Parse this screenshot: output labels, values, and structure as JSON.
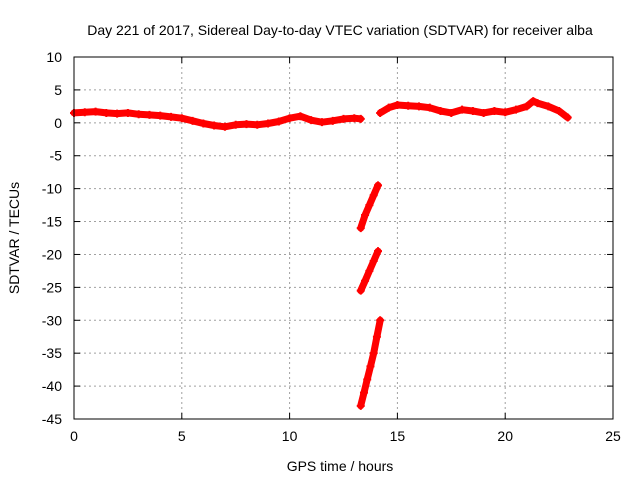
{
  "chart_data": {
    "type": "scatter",
    "title": "Day 221 of 2017, Sidereal Day-to-day VTEC variation (SDTVAR) for receiver alba",
    "xlabel": "GPS time / hours",
    "ylabel": "SDTVAR / TECUs",
    "xlim": [
      0,
      25
    ],
    "ylim": [
      -45,
      10
    ],
    "xticks": [
      0,
      5,
      10,
      15,
      20,
      25
    ],
    "yticks": [
      10,
      5,
      0,
      -5,
      -10,
      -15,
      -20,
      -25,
      -30,
      -35,
      -40,
      -45
    ],
    "grid": true,
    "legend": "none",
    "series_color": "#ff0000",
    "series": [
      {
        "name": "main-trace-1",
        "x": [
          0,
          0.5,
          1,
          1.5,
          2,
          2.5,
          3,
          3.5,
          4,
          4.5,
          5,
          5.5,
          6,
          6.5,
          7,
          7.5,
          8,
          8.5,
          9,
          9.5,
          10,
          10.5,
          11,
          11.5,
          12,
          12.5,
          13,
          13.3
        ],
        "y": [
          1.5,
          1.6,
          1.7,
          1.5,
          1.4,
          1.5,
          1.3,
          1.2,
          1.1,
          0.9,
          0.7,
          0.3,
          -0.1,
          -0.4,
          -0.6,
          -0.3,
          -0.2,
          -0.3,
          -0.1,
          0.2,
          0.7,
          1.0,
          0.4,
          0.1,
          0.3,
          0.6,
          0.7,
          0.6
        ]
      },
      {
        "name": "main-trace-2",
        "x": [
          14.2,
          14.6,
          15,
          15.5,
          16,
          16.5,
          17,
          17.5,
          18,
          18.5,
          19,
          19.5,
          20,
          20.5,
          21,
          21.3,
          21.5,
          22,
          22.5,
          22.9
        ],
        "y": [
          1.5,
          2.3,
          2.7,
          2.6,
          2.5,
          2.3,
          1.8,
          1.5,
          2.0,
          1.8,
          1.5,
          1.8,
          1.6,
          2.0,
          2.5,
          3.3,
          3.0,
          2.5,
          1.8,
          0.8
        ]
      },
      {
        "name": "outlier-segment-1",
        "x": [
          13.3,
          13.5,
          13.7,
          13.9,
          14.1
        ],
        "y": [
          -16,
          -14,
          -12.5,
          -11,
          -9.5
        ]
      },
      {
        "name": "outlier-segment-2",
        "x": [
          13.3,
          13.5,
          13.7,
          13.9,
          14.1
        ],
        "y": [
          -25.5,
          -24,
          -22.5,
          -21,
          -19.5
        ]
      },
      {
        "name": "outlier-segment-3",
        "x": [
          13.3,
          13.45,
          13.6,
          13.75,
          13.9,
          14.05,
          14.2
        ],
        "y": [
          -43,
          -41,
          -39,
          -37,
          -35,
          -32.5,
          -30
        ]
      }
    ]
  }
}
